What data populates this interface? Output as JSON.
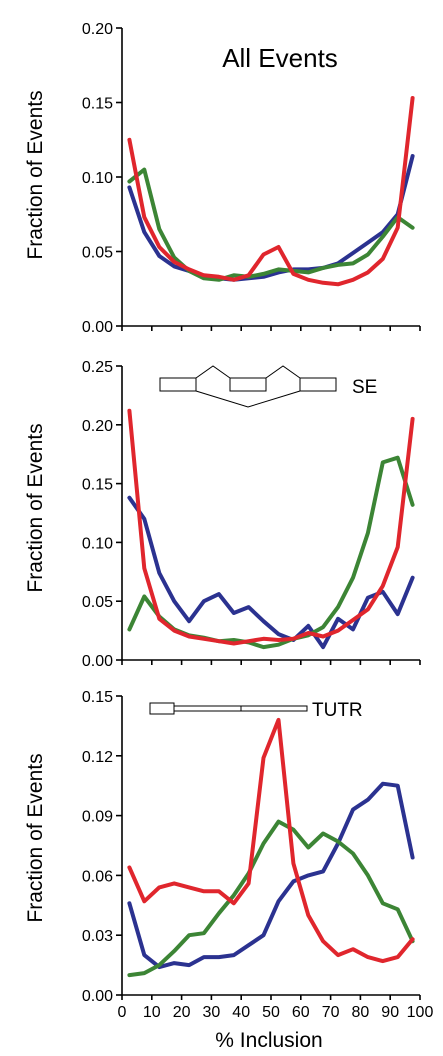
{
  "colors": {
    "blue": "#2b3290",
    "green": "#3c8535",
    "red": "#e0262d"
  },
  "x_axis": {
    "label": "% Inclusion",
    "ticks": [
      "0",
      "10",
      "20",
      "30",
      "40",
      "50",
      "60",
      "70",
      "80",
      "90",
      "100"
    ]
  },
  "chart_data": [
    {
      "type": "line",
      "title": "All Events",
      "diagram_label": "",
      "ylabel": "Fraction of Events",
      "xlabel": "% Inclusion",
      "xlim": [
        0,
        100
      ],
      "ylim": [
        0,
        0.2
      ],
      "yticks": [
        "0.00",
        "0.05",
        "0.10",
        "0.15",
        "0.20"
      ],
      "x": [
        2.5,
        7.5,
        12.5,
        17.5,
        22.5,
        27.5,
        32.5,
        37.5,
        42.5,
        47.5,
        52.5,
        57.5,
        62.5,
        67.5,
        72.5,
        77.5,
        82.5,
        87.5,
        92.5,
        97.5
      ],
      "series": [
        {
          "color": "blue",
          "values": [
            0.093,
            0.063,
            0.047,
            0.04,
            0.037,
            0.033,
            0.032,
            0.031,
            0.032,
            0.033,
            0.036,
            0.038,
            0.038,
            0.039,
            0.042,
            0.049,
            0.056,
            0.063,
            0.075,
            0.114
          ]
        },
        {
          "color": "green",
          "values": [
            0.097,
            0.105,
            0.065,
            0.046,
            0.037,
            0.032,
            0.031,
            0.034,
            0.033,
            0.035,
            0.038,
            0.037,
            0.036,
            0.039,
            0.041,
            0.042,
            0.048,
            0.06,
            0.073,
            0.066
          ]
        },
        {
          "color": "red",
          "values": [
            0.125,
            0.073,
            0.053,
            0.043,
            0.038,
            0.034,
            0.033,
            0.031,
            0.034,
            0.048,
            0.053,
            0.035,
            0.031,
            0.029,
            0.028,
            0.031,
            0.036,
            0.045,
            0.066,
            0.153
          ]
        }
      ]
    },
    {
      "type": "line",
      "title": "",
      "diagram_label": "SE",
      "ylabel": "Fraction of Events",
      "xlabel": "% Inclusion",
      "xlim": [
        0,
        100
      ],
      "ylim": [
        0,
        0.25
      ],
      "yticks": [
        "0.00",
        "0.05",
        "0.10",
        "0.15",
        "0.20",
        "0.25"
      ],
      "x": [
        2.5,
        7.5,
        12.5,
        17.5,
        22.5,
        27.5,
        32.5,
        37.5,
        42.5,
        47.5,
        52.5,
        57.5,
        62.5,
        67.5,
        72.5,
        77.5,
        82.5,
        87.5,
        92.5,
        97.5
      ],
      "series": [
        {
          "color": "blue",
          "values": [
            0.138,
            0.12,
            0.074,
            0.05,
            0.033,
            0.05,
            0.056,
            0.04,
            0.045,
            0.033,
            0.022,
            0.017,
            0.029,
            0.011,
            0.035,
            0.026,
            0.053,
            0.058,
            0.039,
            0.07
          ]
        },
        {
          "color": "green",
          "values": [
            0.026,
            0.054,
            0.037,
            0.026,
            0.021,
            0.019,
            0.016,
            0.017,
            0.015,
            0.011,
            0.013,
            0.018,
            0.021,
            0.028,
            0.045,
            0.07,
            0.108,
            0.168,
            0.172,
            0.132
          ]
        },
        {
          "color": "red",
          "values": [
            0.212,
            0.078,
            0.035,
            0.025,
            0.02,
            0.018,
            0.016,
            0.014,
            0.016,
            0.018,
            0.017,
            0.018,
            0.023,
            0.02,
            0.025,
            0.034,
            0.043,
            0.063,
            0.096,
            0.205
          ]
        }
      ]
    },
    {
      "type": "line",
      "title": "",
      "diagram_label": "TUTR",
      "ylabel": "Fraction of Events",
      "xlabel": "% Inclusion",
      "xlim": [
        0,
        100
      ],
      "ylim": [
        0,
        0.15
      ],
      "yticks": [
        "0.00",
        "0.03",
        "0.06",
        "0.09",
        "0.12",
        "0.15"
      ],
      "x": [
        2.5,
        7.5,
        12.5,
        17.5,
        22.5,
        27.5,
        32.5,
        37.5,
        42.5,
        47.5,
        52.5,
        57.5,
        62.5,
        67.5,
        72.5,
        77.5,
        82.5,
        87.5,
        92.5,
        97.5
      ],
      "series": [
        {
          "color": "blue",
          "values": [
            0.046,
            0.02,
            0.014,
            0.016,
            0.015,
            0.019,
            0.019,
            0.02,
            0.025,
            0.03,
            0.047,
            0.057,
            0.06,
            0.062,
            0.076,
            0.093,
            0.098,
            0.106,
            0.105,
            0.069
          ]
        },
        {
          "color": "green",
          "values": [
            0.01,
            0.011,
            0.015,
            0.022,
            0.03,
            0.031,
            0.041,
            0.05,
            0.061,
            0.076,
            0.087,
            0.083,
            0.074,
            0.081,
            0.077,
            0.071,
            0.06,
            0.046,
            0.043,
            0.027
          ]
        },
        {
          "color": "red",
          "values": [
            0.064,
            0.047,
            0.054,
            0.056,
            0.054,
            0.052,
            0.052,
            0.046,
            0.056,
            0.119,
            0.138,
            0.066,
            0.04,
            0.027,
            0.02,
            0.023,
            0.019,
            0.017,
            0.019,
            0.028
          ]
        }
      ]
    }
  ]
}
